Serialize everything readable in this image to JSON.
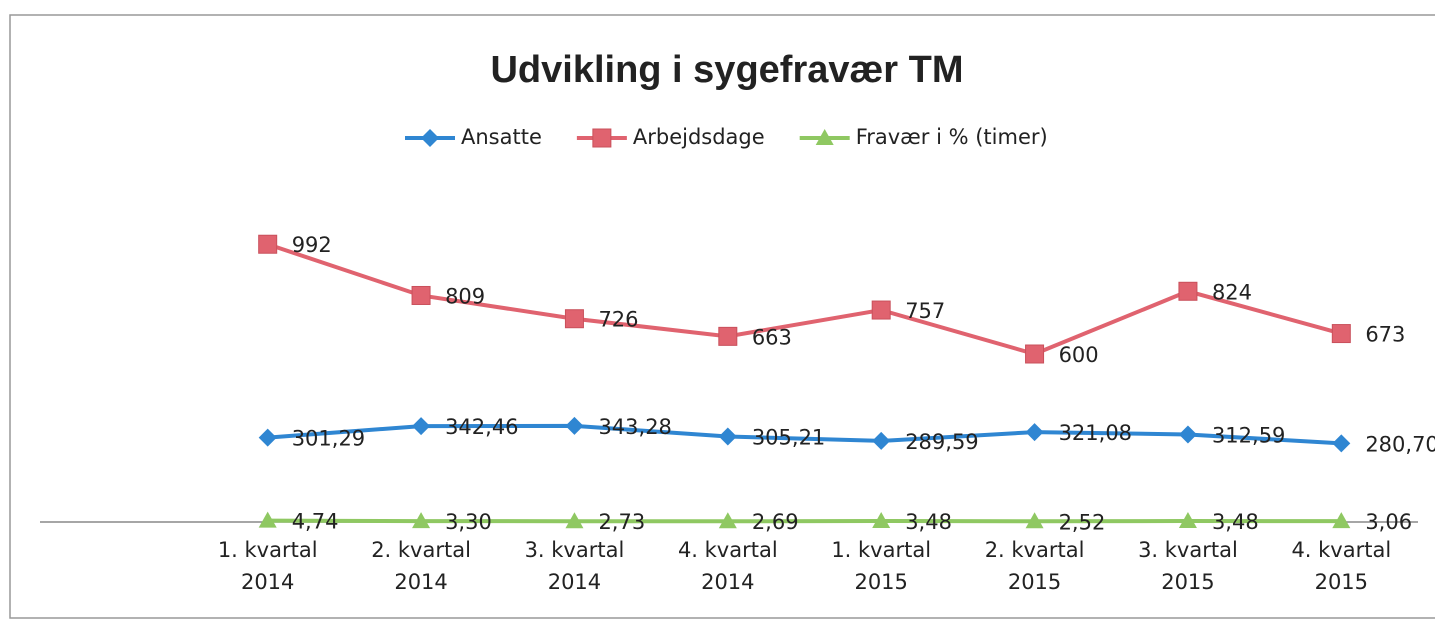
{
  "chart_data": {
    "type": "line",
    "title": "Udvikling i sygefravær TM",
    "categories": [
      "1. kvartal 2014",
      "2. kvartal 2014",
      "3. kvartal 2014",
      "4. kvartal 2014",
      "1. kvartal 2015",
      "2. kvartal 2015",
      "3. kvartal 2015",
      "4. kvartal 2015"
    ],
    "series": [
      {
        "name": "Ansatte",
        "color": "#2f86d2",
        "marker": "diamond",
        "values": [
          301.29,
          342.46,
          343.28,
          305.21,
          289.59,
          321.08,
          312.59,
          280.7
        ],
        "value_labels": [
          "301,29",
          "342,46",
          "343,28",
          "305,21",
          "289,59",
          "321,08",
          "312,59",
          "280,70"
        ]
      },
      {
        "name": "Arbejdsdage",
        "color": "#e0636f",
        "marker": "square",
        "values": [
          992,
          809,
          726,
          663,
          757,
          600,
          824,
          673
        ]
      },
      {
        "name": "Fravær i % (timer)",
        "color": "#8fc862",
        "marker": "triangle",
        "values": [
          4.74,
          3.3,
          2.73,
          2.69,
          3.48,
          2.52,
          3.48,
          3.06
        ],
        "value_labels": [
          "4,74",
          "3,30",
          "2,73",
          "2,69",
          "3,48",
          "2,52",
          "3,48",
          "3,06"
        ]
      }
    ],
    "ylim": [
      0,
      1000
    ],
    "legend": "top"
  }
}
